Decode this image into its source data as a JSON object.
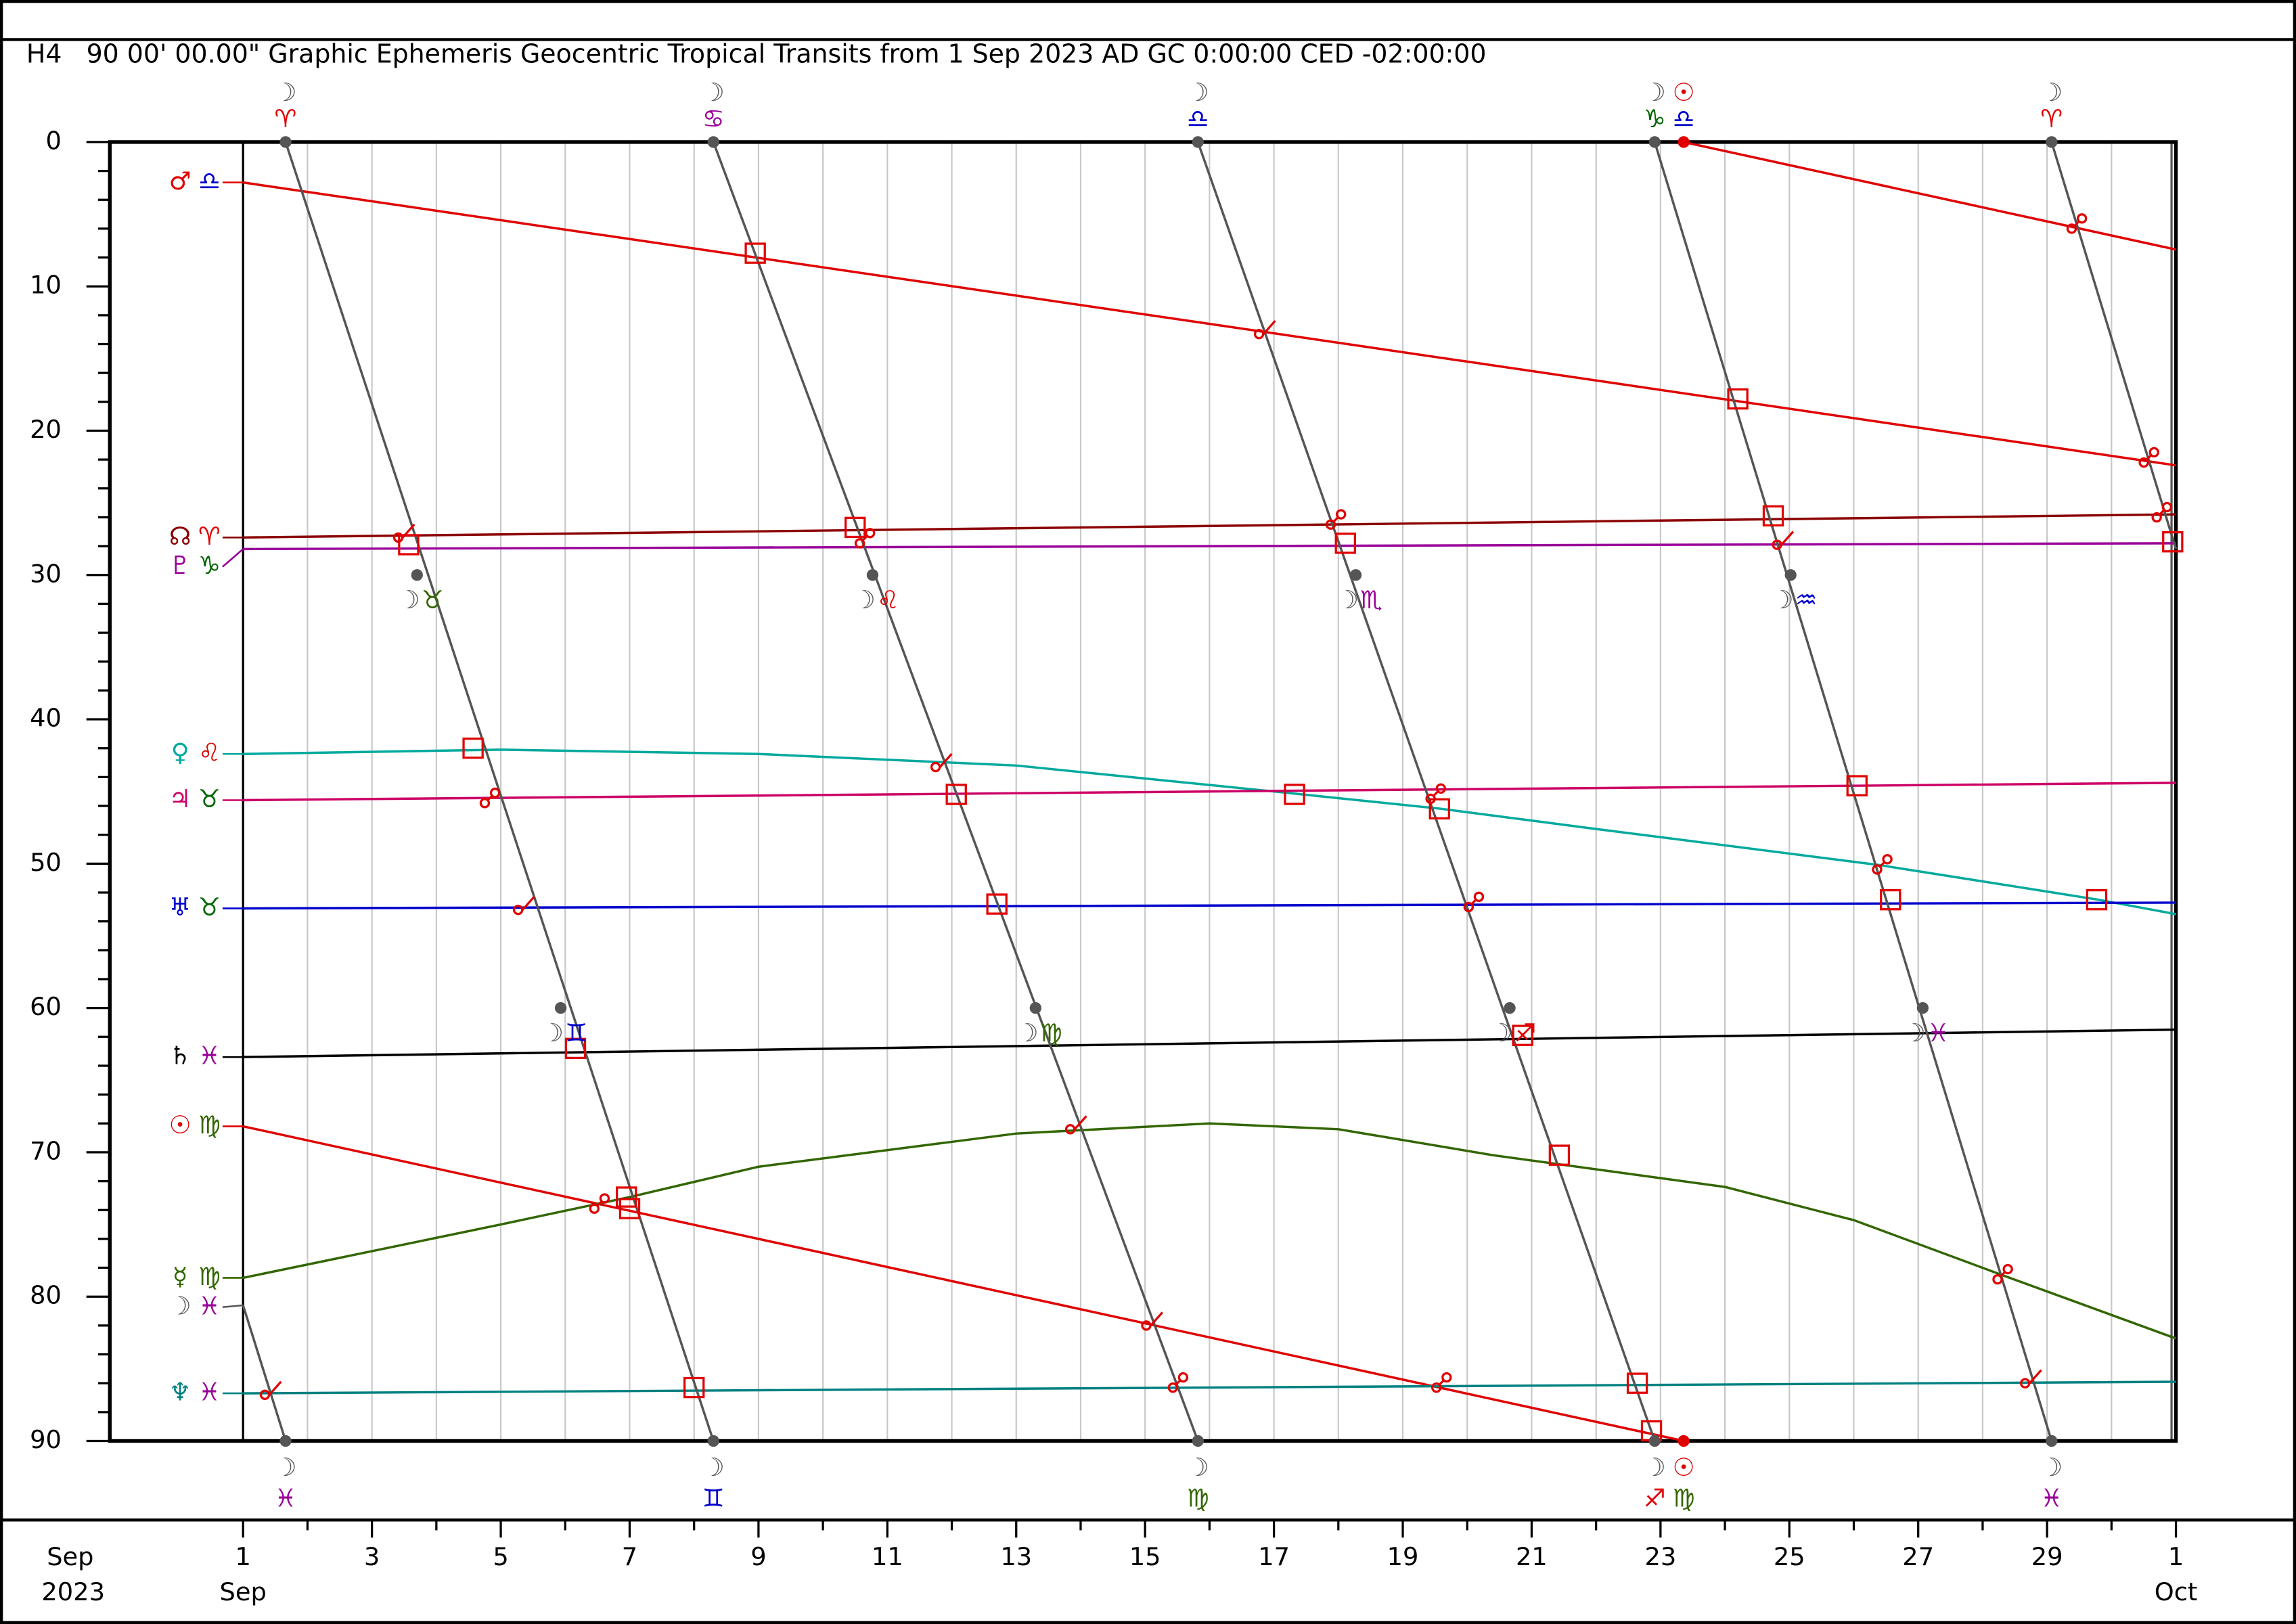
{
  "chart_data": {
    "type": "line",
    "title": "H4   90 00' 00.00\" Graphic Ephemeris Geocentric Tropical Transits from 1 Sep 2023 AD GC 0:00:00 CED -02:00:00",
    "xlim": [
      1,
      31
    ],
    "ylim": [
      0,
      90
    ],
    "y_inverted": true,
    "xticks": [
      1,
      3,
      5,
      7,
      9,
      11,
      13,
      15,
      17,
      19,
      21,
      23,
      25,
      27,
      29,
      {
        "value": 31,
        "label": "1"
      }
    ],
    "xminorticks": [
      2,
      4,
      6,
      8,
      10,
      12,
      14,
      16,
      18,
      20,
      22,
      24,
      26,
      28,
      30
    ],
    "x_month_labels": [
      {
        "value": 1,
        "label": "Sep"
      },
      {
        "value": 31,
        "label": "Oct"
      }
    ],
    "x_axis_start": {
      "month": "Sep",
      "year": "2023"
    },
    "yticks": [
      0,
      10,
      20,
      30,
      40,
      50,
      60,
      70,
      80,
      90
    ],
    "yminorticks": [
      2,
      4,
      6,
      8,
      12,
      14,
      16,
      18,
      22,
      24,
      26,
      28,
      32,
      34,
      36,
      38,
      42,
      44,
      46,
      48,
      52,
      54,
      56,
      58,
      62,
      64,
      66,
      68,
      72,
      74,
      76,
      78,
      82,
      84,
      86,
      88
    ],
    "grid": true,
    "series": [
      {
        "name": "♂",
        "sign": "♎",
        "color": "#e00000",
        "sign_color": "#0000cc",
        "x": [
          1,
          31
        ],
        "values": [
          2.8,
          22.4
        ]
      },
      {
        "name": "☊",
        "sign": "♈",
        "color": "#8b0000",
        "sign_color": "#e00000",
        "x": [
          1,
          31
        ],
        "values": [
          27.4,
          25.8
        ]
      },
      {
        "name": "♇",
        "sign": "♑",
        "color": "#990099",
        "sign_color": "#006600",
        "x": [
          1,
          31
        ],
        "values": [
          28.2,
          27.8
        ]
      },
      {
        "name": "♀",
        "sign": "♌",
        "color": "#00a99d",
        "sign_color": "#e00000",
        "x": [
          1,
          5,
          9,
          13,
          17,
          19.6,
          22,
          25,
          26.4,
          29.8,
          31
        ],
        "values": [
          42.4,
          42.1,
          42.4,
          43.2,
          45.0,
          46.2,
          47.6,
          49.3,
          50.1,
          52.5,
          53.5
        ]
      },
      {
        "name": "♃",
        "sign": "♉",
        "color": "#cc0066",
        "sign_color": "#006600",
        "x": [
          1,
          31
        ],
        "values": [
          45.6,
          44.4
        ]
      },
      {
        "name": "♅",
        "sign": "♉",
        "color": "#0000cc",
        "sign_color": "#006600",
        "x": [
          1,
          31
        ],
        "values": [
          53.1,
          52.7
        ]
      },
      {
        "name": "♄",
        "sign": "♓",
        "color": "#000000",
        "sign_color": "#990099",
        "x": [
          1,
          31
        ],
        "values": [
          63.4,
          61.5
        ]
      },
      {
        "name": "☉",
        "sign": "♍",
        "color": "#e00000",
        "sign_color": "#336600",
        "x": [
          1,
          23.36,
          23.36,
          23.36,
          31
        ],
        "values": [
          68.2,
          90,
          null,
          0,
          7.45
        ]
      },
      {
        "name": "☿",
        "sign": "♍",
        "color": "#336600",
        "sign_color": "#336600",
        "x": [
          1,
          5,
          7,
          9,
          13,
          16,
          18,
          20.4,
          24,
          26,
          28.3,
          31
        ],
        "values": [
          78.7,
          75.0,
          73.1,
          71.0,
          68.7,
          68.0,
          68.4,
          70.2,
          72.4,
          74.7,
          78.5,
          82.9
        ]
      },
      {
        "name": "♆",
        "sign": "♓",
        "color": "#008080",
        "sign_color": "#990099",
        "x": [
          1,
          31
        ],
        "values": [
          86.7,
          85.9
        ]
      },
      {
        "name": "☽",
        "sign": "♓",
        "color": "#555555",
        "sign_color": "#990099",
        "x": [
          1,
          1.66,
          1.66,
          1.66,
          8.3,
          8.3,
          8.3,
          15.82,
          15.82,
          15.82,
          22.91,
          22.91,
          22.91,
          29.07,
          29.07,
          29.07,
          31
        ],
        "values": [
          80.6,
          90,
          null,
          0,
          90,
          null,
          0,
          90,
          null,
          0,
          90,
          null,
          0,
          90,
          null,
          0,
          28.2
        ]
      }
    ],
    "top_labels": [
      {
        "x": 1.66,
        "planet": "☽",
        "color": "#555555",
        "sign": "♈",
        "sign_color": "#e00000"
      },
      {
        "x": 8.3,
        "planet": "☽",
        "color": "#555555",
        "sign": "♋",
        "sign_color": "#990099"
      },
      {
        "x": 15.82,
        "planet": "☽",
        "color": "#555555",
        "sign": "♎",
        "sign_color": "#0000cc"
      },
      {
        "x": 22.91,
        "planet": "☽",
        "color": "#555555",
        "sign": "♑",
        "sign_color": "#006600"
      },
      {
        "x": 23.36,
        "planet": "☉",
        "color": "#e00000",
        "sign": "♎",
        "sign_color": "#0000cc"
      },
      {
        "x": 29.07,
        "planet": "☽",
        "color": "#555555",
        "sign": "♈",
        "sign_color": "#e00000"
      }
    ],
    "bottom_labels": [
      {
        "x": 1.66,
        "planet": "☽",
        "color": "#555555",
        "sign": "♓",
        "sign_color": "#990099"
      },
      {
        "x": 8.3,
        "planet": "☽",
        "color": "#555555",
        "sign": "♊",
        "sign_color": "#0000cc"
      },
      {
        "x": 15.82,
        "planet": "☽",
        "color": "#555555",
        "sign": "♍",
        "sign_color": "#336600"
      },
      {
        "x": 22.91,
        "planet": "☽",
        "color": "#555555",
        "sign": "♐",
        "sign_color": "#e00000"
      },
      {
        "x": 23.36,
        "planet": "☉",
        "color": "#e00000",
        "sign": "♍",
        "sign_color": "#336600"
      },
      {
        "x": 29.07,
        "planet": "☽",
        "color": "#555555",
        "sign": "♓",
        "sign_color": "#990099"
      }
    ],
    "mid_labels": [
      {
        "x": 3.7,
        "value": 30,
        "planet": "☽",
        "sign": "♉",
        "sign_color": "#336600"
      },
      {
        "x": 5.93,
        "value": 60,
        "planet": "☽",
        "sign": "♊",
        "sign_color": "#0000cc"
      },
      {
        "x": 10.77,
        "value": 30,
        "planet": "☽",
        "sign": "♌",
        "sign_color": "#e00000"
      },
      {
        "x": 13.3,
        "value": 60,
        "planet": "☽",
        "sign": "♍",
        "sign_color": "#336600"
      },
      {
        "x": 18.27,
        "value": 30,
        "planet": "☽",
        "sign": "♏",
        "sign_color": "#990099"
      },
      {
        "x": 20.66,
        "value": 60,
        "planet": "☽",
        "sign": "♐",
        "sign_color": "#e00000"
      },
      {
        "x": 25.02,
        "value": 30,
        "planet": "☽",
        "sign": "♒",
        "sign_color": "#0000cc"
      },
      {
        "x": 27.07,
        "value": 60,
        "planet": "☽",
        "sign": "♓",
        "sign_color": "#990099"
      }
    ],
    "aspect_color": "#e00000",
    "aspects": [
      {
        "x": 8.95,
        "value": 7.7,
        "kind": "square"
      },
      {
        "x": 3.57,
        "value": 27.9,
        "kind": "square"
      },
      {
        "x": 10.5,
        "value": 26.7,
        "kind": "square"
      },
      {
        "x": 24.2,
        "value": 17.8,
        "kind": "square"
      },
      {
        "x": 24.75,
        "value": 25.9,
        "kind": "square"
      },
      {
        "x": 30.95,
        "value": 27.7,
        "kind": "square"
      },
      {
        "x": 18.11,
        "value": 27.8,
        "kind": "square"
      },
      {
        "x": 4.57,
        "value": 42.0,
        "kind": "square"
      },
      {
        "x": 12.07,
        "value": 45.2,
        "kind": "square"
      },
      {
        "x": 17.32,
        "value": 45.2,
        "kind": "square"
      },
      {
        "x": 19.57,
        "value": 46.2,
        "kind": "square"
      },
      {
        "x": 26.05,
        "value": 44.6,
        "kind": "square"
      },
      {
        "x": 12.7,
        "value": 52.8,
        "kind": "square"
      },
      {
        "x": 26.57,
        "value": 52.5,
        "kind": "square"
      },
      {
        "x": 29.77,
        "value": 52.5,
        "kind": "square"
      },
      {
        "x": 6.16,
        "value": 62.8,
        "kind": "square"
      },
      {
        "x": 6.95,
        "value": 73.1,
        "kind": "square"
      },
      {
        "x": 7.0,
        "value": 73.9,
        "kind": "square"
      },
      {
        "x": 21.43,
        "value": 70.2,
        "kind": "square"
      },
      {
        "x": 8.0,
        "value": 86.3,
        "kind": "square"
      },
      {
        "x": 22.64,
        "value": 86.0,
        "kind": "square"
      },
      {
        "x": 22.86,
        "value": 89.3,
        "kind": "square"
      },
      {
        "x": 20.86,
        "value": 61.9,
        "kind": "square"
      },
      {
        "x": 29.45,
        "value": 5.7,
        "kind": "opposition"
      },
      {
        "x": 30.57,
        "value": 21.9,
        "kind": "opposition"
      },
      {
        "x": 30.77,
        "value": 25.7,
        "kind": "opposition"
      },
      {
        "x": 17.95,
        "value": 26.2,
        "kind": "opposition"
      },
      {
        "x": 10.64,
        "value": 27.5,
        "kind": "opposition"
      },
      {
        "x": 19.5,
        "value": 45.2,
        "kind": "opposition"
      },
      {
        "x": 20.09,
        "value": 52.7,
        "kind": "opposition"
      },
      {
        "x": 26.43,
        "value": 50.1,
        "kind": "opposition"
      },
      {
        "x": 28.3,
        "value": 78.5,
        "kind": "opposition"
      },
      {
        "x": 19.59,
        "value": 86.0,
        "kind": "opposition"
      },
      {
        "x": 15.5,
        "value": 86.0,
        "kind": "opposition"
      },
      {
        "x": 6.52,
        "value": 73.6,
        "kind": "opposition"
      },
      {
        "x": 4.82,
        "value": 45.5,
        "kind": "opposition"
      },
      {
        "x": 11.84,
        "value": 43.1,
        "kind": "semisquare"
      },
      {
        "x": 16.86,
        "value": 13.1,
        "kind": "semisquare"
      },
      {
        "x": 3.5,
        "value": 27.2,
        "kind": "semisquare"
      },
      {
        "x": 24.9,
        "value": 27.7,
        "kind": "semisquare"
      },
      {
        "x": 5.36,
        "value": 53.0,
        "kind": "semisquare"
      },
      {
        "x": 13.93,
        "value": 68.2,
        "kind": "semisquare"
      },
      {
        "x": 15.11,
        "value": 81.8,
        "kind": "semisquare"
      },
      {
        "x": 1.43,
        "value": 86.6,
        "kind": "semisquare"
      },
      {
        "x": 28.75,
        "value": 85.8,
        "kind": "semisquare"
      }
    ]
  }
}
